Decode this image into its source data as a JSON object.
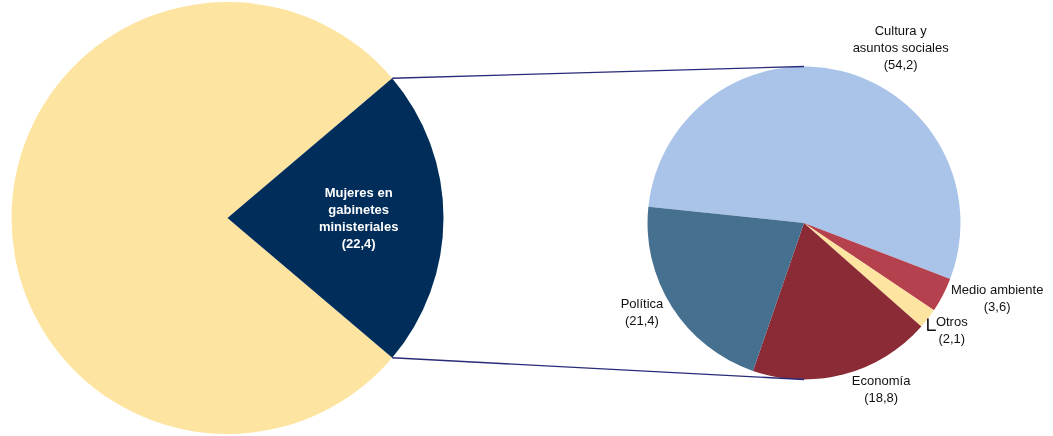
{
  "chart_data": [
    {
      "type": "pie",
      "categories": [
        null,
        "Mujeres en gabinetes ministeriales"
      ],
      "values": [
        77.6,
        22.4
      ],
      "colors": [
        "#fde4a0",
        "#002d5a"
      ],
      "value_labels": [
        null,
        "(22,4)"
      ]
    },
    {
      "type": "pie",
      "categories": [
        "Cultura y asuntos sociales",
        "Medio ambiente",
        "Otros",
        "Economía",
        "Política"
      ],
      "values": [
        54.2,
        3.6,
        2.1,
        18.8,
        21.4
      ],
      "colors": [
        "#a9c4e8",
        "#b5404e",
        "#fde4a0",
        "#8a2b35",
        "#46708f"
      ],
      "value_labels": [
        "(54,2)",
        "(3,6)",
        "(2,1)",
        "(18,8)",
        "(21,4)"
      ]
    }
  ]
}
